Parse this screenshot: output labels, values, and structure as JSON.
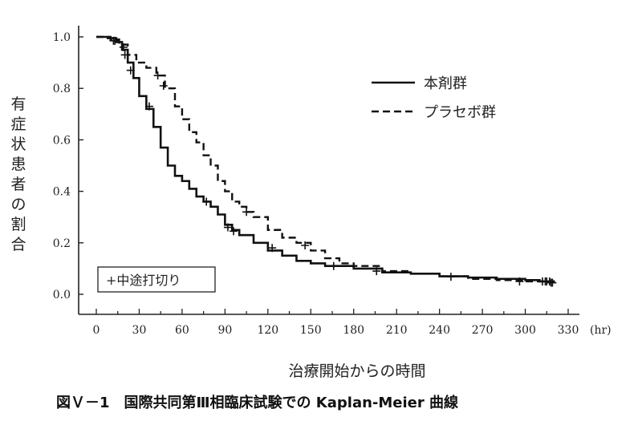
{
  "chart_data": {
    "type": "line",
    "title": "",
    "xlabel": "治療開始からの時間",
    "ylabel": "有症状患者の割合",
    "x_unit": "(hr)",
    "xlim": [
      0,
      330
    ],
    "ylim": [
      0.0,
      1.0
    ],
    "x_ticks": [
      0,
      30,
      60,
      90,
      120,
      150,
      180,
      210,
      240,
      270,
      300,
      330
    ],
    "y_ticks": [
      "0.0",
      "0.2",
      "0.4",
      "0.6",
      "0.8",
      "1.0"
    ],
    "grid": false,
    "legend_position": "top-right",
    "censor_legend": "+中途打切り",
    "series": [
      {
        "name": "本剤群",
        "style": "solid",
        "color": "#111111",
        "points": [
          [
            0,
            1.0
          ],
          [
            8,
            0.995
          ],
          [
            14,
            0.98
          ],
          [
            18,
            0.95
          ],
          [
            22,
            0.9
          ],
          [
            26,
            0.84
          ],
          [
            30,
            0.77
          ],
          [
            35,
            0.72
          ],
          [
            40,
            0.65
          ],
          [
            45,
            0.57
          ],
          [
            50,
            0.5
          ],
          [
            55,
            0.46
          ],
          [
            60,
            0.44
          ],
          [
            65,
            0.41
          ],
          [
            70,
            0.38
          ],
          [
            75,
            0.36
          ],
          [
            80,
            0.34
          ],
          [
            85,
            0.31
          ],
          [
            90,
            0.27
          ],
          [
            95,
            0.25
          ],
          [
            100,
            0.23
          ],
          [
            110,
            0.2
          ],
          [
            120,
            0.17
          ],
          [
            130,
            0.15
          ],
          [
            140,
            0.13
          ],
          [
            150,
            0.12
          ],
          [
            160,
            0.11
          ],
          [
            180,
            0.1
          ],
          [
            200,
            0.085
          ],
          [
            220,
            0.08
          ],
          [
            240,
            0.07
          ],
          [
            260,
            0.065
          ],
          [
            280,
            0.06
          ],
          [
            300,
            0.055
          ],
          [
            310,
            0.05
          ],
          [
            320,
            0.045
          ]
        ],
        "censored": [
          [
            12,
            0.985
          ],
          [
            20,
            0.93
          ],
          [
            24,
            0.87
          ],
          [
            37,
            0.73
          ],
          [
            77,
            0.36
          ],
          [
            92,
            0.26
          ],
          [
            96,
            0.245
          ],
          [
            123,
            0.18
          ],
          [
            166,
            0.11
          ],
          [
            248,
            0.068
          ],
          [
            312,
            0.05
          ],
          [
            315,
            0.05
          ],
          [
            317,
            0.05
          ],
          [
            319,
            0.045
          ]
        ]
      },
      {
        "name": "プラセボ群",
        "style": "dashed",
        "color": "#111111",
        "points": [
          [
            0,
            1.0
          ],
          [
            10,
            0.99
          ],
          [
            16,
            0.97
          ],
          [
            22,
            0.93
          ],
          [
            28,
            0.9
          ],
          [
            35,
            0.88
          ],
          [
            42,
            0.85
          ],
          [
            48,
            0.8
          ],
          [
            55,
            0.73
          ],
          [
            60,
            0.68
          ],
          [
            65,
            0.63
          ],
          [
            70,
            0.59
          ],
          [
            75,
            0.54
          ],
          [
            80,
            0.5
          ],
          [
            85,
            0.44
          ],
          [
            90,
            0.4
          ],
          [
            95,
            0.36
          ],
          [
            100,
            0.34
          ],
          [
            105,
            0.32
          ],
          [
            110,
            0.3
          ],
          [
            120,
            0.25
          ],
          [
            130,
            0.22
          ],
          [
            140,
            0.2
          ],
          [
            150,
            0.17
          ],
          [
            160,
            0.14
          ],
          [
            170,
            0.12
          ],
          [
            180,
            0.11
          ],
          [
            200,
            0.09
          ],
          [
            220,
            0.08
          ],
          [
            240,
            0.07
          ],
          [
            260,
            0.06
          ],
          [
            280,
            0.055
          ],
          [
            300,
            0.05
          ],
          [
            320,
            0.045
          ]
        ],
        "censored": [
          [
            13,
            0.985
          ],
          [
            19,
            0.96
          ],
          [
            43,
            0.85
          ],
          [
            47,
            0.81
          ],
          [
            105,
            0.32
          ],
          [
            146,
            0.19
          ],
          [
            196,
            0.09
          ],
          [
            296,
            0.05
          ],
          [
            314,
            0.05
          ],
          [
            318,
            0.045
          ]
        ]
      }
    ]
  },
  "caption": "図Ｖ－1　国際共同第Ⅲ相臨床試験での Kaplan-Meier 曲線"
}
